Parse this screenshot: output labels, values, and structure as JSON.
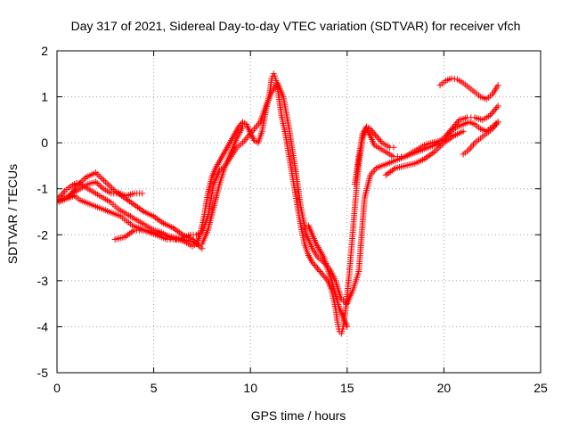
{
  "chart_data": {
    "type": "scatter",
    "title": "Day 317 of 2021, Sidereal Day-to-day VTEC variation (SDTVAR) for receiver vfch",
    "xlabel": "GPS time / hours",
    "ylabel": "SDTVAR / TECUs",
    "xlim": [
      0,
      25
    ],
    "ylim": [
      -5,
      2
    ],
    "xticks": [
      "0",
      "5",
      "10",
      "15",
      "20",
      "25"
    ],
    "yticks": [
      "2",
      "1",
      "0",
      "-1",
      "-2",
      "-3",
      "-4",
      "-5"
    ],
    "grid": true,
    "marker": "+",
    "color": "#ff0000",
    "series": [
      {
        "x": [
          0.0,
          0.2,
          0.4,
          0.6,
          0.8,
          1.0,
          1.2,
          1.4,
          1.6,
          1.8,
          2.0,
          2.2,
          2.4,
          2.6,
          2.8,
          3.0,
          3.2,
          3.4,
          3.6,
          3.8,
          4.0,
          4.2,
          4.4,
          4.6,
          4.8,
          5.0,
          5.2,
          5.4,
          5.6,
          5.8,
          6.0,
          6.2,
          6.4,
          6.6,
          6.8,
          7.0,
          7.2,
          7.4,
          7.6,
          7.8,
          8.0,
          8.2,
          8.4,
          8.6,
          8.8,
          9.0,
          9.2,
          9.4,
          9.6,
          9.8,
          10.0,
          10.2,
          10.4,
          10.6,
          10.8,
          11.0,
          11.1,
          11.2,
          11.3,
          11.4,
          11.5,
          11.6,
          11.8,
          12.0,
          12.2,
          12.4,
          12.6,
          12.8,
          13.0,
          13.2,
          13.4,
          13.6,
          13.8,
          14.0,
          14.2,
          14.4,
          14.5,
          14.6,
          14.7,
          14.8,
          14.9,
          15.0,
          15.1,
          15.2,
          15.3,
          15.4,
          15.5,
          15.6,
          15.8,
          16.0,
          16.2,
          16.4,
          16.6,
          16.8,
          17.0,
          17.2,
          17.4,
          17.6,
          17.8,
          18.0,
          18.2,
          18.4,
          18.6,
          18.8,
          19.0,
          19.2,
          19.4,
          19.6,
          19.8,
          20.0,
          20.2,
          20.4,
          20.6,
          20.8,
          21.0,
          21.2,
          21.4,
          21.6,
          21.8,
          22.0,
          22.2,
          22.4,
          22.6,
          22.8
        ],
        "y": [
          -1.2,
          -1.15,
          -1.05,
          -0.98,
          -0.92,
          -0.88,
          -0.9,
          -0.95,
          -1.0,
          -1.05,
          -1.1,
          -1.15,
          -1.2,
          -1.25,
          -1.3,
          -1.38,
          -1.45,
          -1.5,
          -1.55,
          -1.6,
          -1.65,
          -1.7,
          -1.75,
          -1.8,
          -1.85,
          -1.9,
          -1.92,
          -1.95,
          -2.0,
          -2.05,
          -2.08,
          -2.1,
          -2.12,
          -2.15,
          -2.2,
          -2.25,
          -2.2,
          -2.0,
          -1.6,
          -1.1,
          -0.75,
          -0.55,
          -0.4,
          -0.25,
          -0.1,
          0.05,
          0.2,
          0.35,
          0.45,
          0.4,
          0.2,
          0.05,
          0.0,
          0.25,
          0.7,
          1.1,
          1.4,
          1.5,
          1.4,
          1.2,
          0.9,
          0.6,
          0.2,
          -0.3,
          -0.8,
          -1.3,
          -1.8,
          -2.2,
          -2.45,
          -2.6,
          -2.7,
          -2.8,
          -2.9,
          -3.0,
          -3.2,
          -3.6,
          -3.9,
          -4.1,
          -4.15,
          -4.0,
          -3.7,
          -3.3,
          -2.9,
          -2.4,
          -1.9,
          -1.4,
          -0.9,
          -0.45,
          0.1,
          0.3,
          0.15,
          -0.05,
          -0.1,
          -0.15,
          -0.2,
          -0.25,
          -0.3,
          -0.3,
          -0.3,
          -0.3,
          -0.25,
          -0.2,
          -0.15,
          -0.1,
          -0.05,
          -0.02,
          0.0,
          0.02,
          0.05,
          0.1,
          0.2,
          0.3,
          0.4,
          0.5,
          0.52,
          0.55,
          0.55,
          0.55,
          0.52,
          0.5,
          0.55,
          0.6,
          0.7,
          0.8
        ]
      },
      {
        "x": [
          0.0,
          0.3,
          0.6,
          0.9,
          1.2,
          1.5,
          1.8,
          2.1,
          2.4,
          2.7,
          3.0,
          3.3,
          3.6,
          3.9,
          4.2,
          4.5,
          4.8,
          5.1,
          5.4,
          5.7,
          6.0,
          6.3,
          6.6,
          6.9,
          7.2,
          7.5,
          7.8,
          8.1,
          8.4,
          8.7,
          9.0,
          9.3,
          9.6,
          9.9,
          10.2,
          10.5,
          10.8,
          11.1,
          11.4,
          11.7,
          12.0,
          12.3,
          12.6,
          12.9,
          13.2,
          13.5,
          13.8,
          14.1,
          14.4,
          14.7,
          15.0,
          15.3,
          15.6,
          15.9,
          16.2,
          16.5,
          16.8,
          17.1,
          17.4,
          17.7,
          18.0,
          18.3,
          18.6,
          18.9,
          19.2,
          19.5,
          19.8,
          20.1,
          20.4,
          20.7,
          21.0,
          21.3,
          21.6,
          21.9,
          22.2,
          22.5,
          22.8
        ],
        "y": [
          -1.3,
          -1.25,
          -1.2,
          -1.15,
          -1.25,
          -1.3,
          -1.35,
          -1.4,
          -1.45,
          -1.5,
          -1.55,
          -1.6,
          -1.7,
          -1.8,
          -1.85,
          -1.9,
          -1.95,
          -2.0,
          -2.05,
          -2.1,
          -2.1,
          -2.1,
          -2.05,
          -2.0,
          -2.0,
          -1.95,
          -1.6,
          -0.9,
          -0.6,
          -0.5,
          -0.3,
          -0.1,
          0.0,
          0.15,
          0.3,
          0.45,
          0.8,
          1.1,
          1.3,
          1.0,
          0.3,
          -0.5,
          -1.4,
          -2.0,
          -2.3,
          -2.5,
          -2.6,
          -2.75,
          -3.0,
          -3.4,
          -3.5,
          -3.2,
          -2.8,
          -1.2,
          -0.7,
          -0.55,
          -0.5,
          -0.45,
          -0.4,
          -0.35,
          -0.3,
          -0.25,
          -0.2,
          -0.15,
          -0.1,
          -0.05,
          0.0,
          0.1,
          0.25,
          0.35,
          0.4,
          0.45,
          0.4,
          0.3,
          0.25,
          0.35,
          0.45
        ]
      },
      {
        "x": [
          0.0,
          0.4,
          0.8,
          1.2,
          1.6,
          2.0,
          2.4,
          2.8,
          3.2,
          3.6,
          4.0,
          4.4
        ],
        "y": [
          -1.25,
          -1.2,
          -1.1,
          -1.0,
          -0.9,
          -0.85,
          -1.0,
          -1.1,
          -1.1,
          -1.15,
          -1.1,
          -1.1
        ]
      },
      {
        "x": [
          0.6,
          1.0,
          1.5,
          2.0,
          2.5,
          3.0,
          3.5,
          4.0,
          4.5,
          5.0,
          5.5,
          6.0,
          6.5,
          7.0,
          7.5
        ],
        "y": [
          -1.2,
          -0.95,
          -0.75,
          -0.65,
          -0.85,
          -1.05,
          -1.2,
          -1.35,
          -1.5,
          -1.6,
          -1.75,
          -1.85,
          -2.0,
          -2.1,
          -2.3
        ]
      },
      {
        "x": [
          3.0,
          3.5,
          4.0,
          4.5,
          5.0,
          5.5,
          6.0,
          6.5,
          7.0,
          7.3
        ],
        "y": [
          -2.1,
          -2.05,
          -1.9,
          -1.9,
          -1.95,
          -2.0,
          -2.05,
          -2.1,
          -2.15,
          -2.2
        ]
      },
      {
        "x": [
          7.5,
          7.8,
          8.1,
          8.4,
          8.7,
          9.0,
          9.3,
          9.6
        ],
        "y": [
          -2.2,
          -1.9,
          -1.4,
          -0.9,
          -0.5,
          -0.2,
          0.1,
          0.35
        ]
      },
      {
        "x": [
          15.4,
          15.6,
          15.8,
          16.0,
          16.2,
          16.4,
          16.6,
          16.8,
          17.0,
          17.2,
          17.4
        ],
        "y": [
          -0.9,
          -0.3,
          0.2,
          0.35,
          0.3,
          0.2,
          0.1,
          0.0,
          -0.05,
          -0.1,
          -0.1
        ]
      },
      {
        "x": [
          19.8,
          20.1,
          20.4,
          20.7,
          21.0,
          21.3,
          21.6,
          21.9,
          22.2,
          22.5,
          22.8
        ],
        "y": [
          1.25,
          1.35,
          1.4,
          1.38,
          1.3,
          1.2,
          1.1,
          1.0,
          0.95,
          1.05,
          1.25
        ]
      },
      {
        "x": [
          21.0,
          21.3,
          21.6,
          21.9,
          22.2,
          22.5,
          22.8
        ],
        "y": [
          -0.25,
          -0.15,
          0.0,
          0.1,
          0.2,
          0.3,
          0.45
        ]
      },
      {
        "x": [
          17.0,
          17.5,
          18.0,
          18.5,
          19.0,
          19.5,
          20.0,
          20.5,
          21.0
        ],
        "y": [
          -0.7,
          -0.55,
          -0.5,
          -0.45,
          -0.35,
          -0.2,
          0.0,
          0.15,
          0.25
        ]
      },
      {
        "x": [
          13.0,
          13.4,
          13.8,
          14.2,
          14.6,
          15.0
        ],
        "y": [
          -1.8,
          -2.2,
          -2.5,
          -3.0,
          -3.6,
          -4.0
        ]
      }
    ]
  }
}
